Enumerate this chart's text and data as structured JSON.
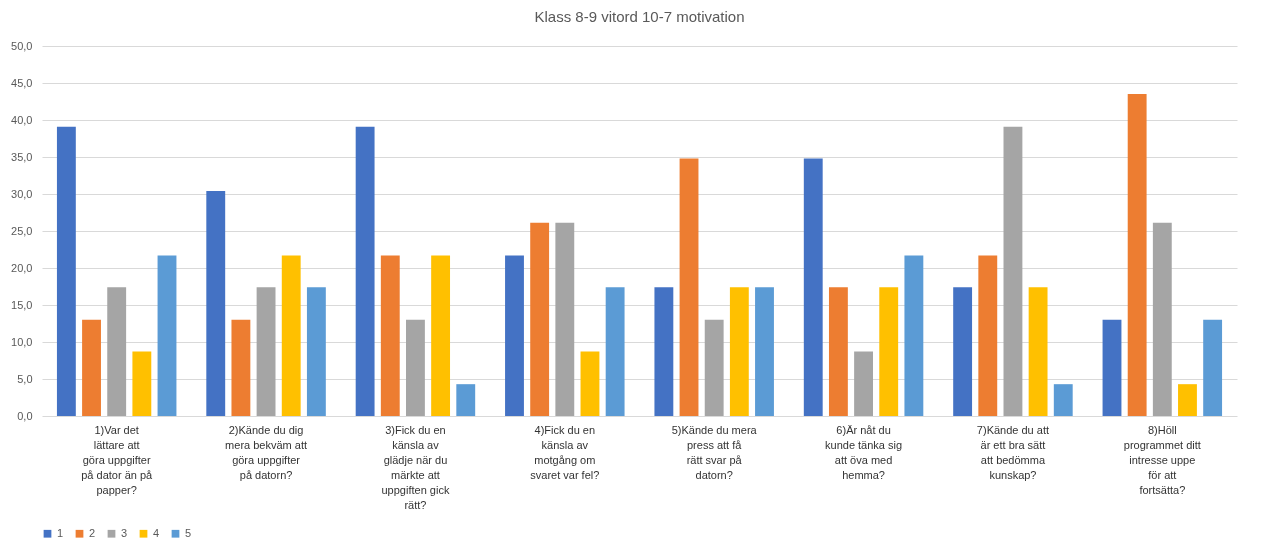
{
  "chart_data": {
    "type": "bar",
    "title": "Klass 8-9 vitord 10-7 motivation",
    "categories": [
      "1)Var det lättare att göra uppgifter på dator än på papper?",
      "2)Kände du dig mera bekväm att göra uppgifter på datorn?",
      "3)Fick du en känsla av glädje när du märkte att uppgiften gick rätt?",
      "4)Fick du en känsla av motgång om svaret var fel?",
      "5)Kände du mera press att få rätt svar på datorn?",
      "6)Är nåt du kunde tänka sig att öva med hemma?",
      "7)Kände du att är ett bra sätt att bedömma kunskap?",
      "8)Höll programmet ditt intresse uppe för att fortsätta?"
    ],
    "series": [
      {
        "name": "1",
        "color": "#4472c4",
        "values": [
          39.1,
          30.4,
          39.1,
          21.7,
          17.4,
          34.8,
          17.4,
          13.0
        ]
      },
      {
        "name": "2",
        "color": "#ed7d31",
        "values": [
          13.0,
          13.0,
          21.7,
          26.1,
          34.8,
          17.4,
          21.7,
          43.5
        ]
      },
      {
        "name": "3",
        "color": "#a5a5a5",
        "values": [
          17.4,
          17.4,
          13.0,
          26.1,
          13.0,
          8.7,
          39.1,
          26.1
        ]
      },
      {
        "name": "4",
        "color": "#ffc000",
        "values": [
          8.7,
          21.7,
          21.7,
          8.7,
          17.4,
          17.4,
          17.4,
          4.3
        ]
      },
      {
        "name": "5",
        "color": "#5b9bd5",
        "values": [
          21.7,
          17.4,
          4.3,
          17.4,
          17.4,
          21.7,
          4.3,
          13.0
        ]
      }
    ],
    "ylim": [
      0,
      50
    ],
    "yticks": [
      {
        "value": 0,
        "label": "0,0"
      },
      {
        "value": 5,
        "label": "5,0"
      },
      {
        "value": 10,
        "label": "10,0"
      },
      {
        "value": 15,
        "label": "15,0"
      },
      {
        "value": 20,
        "label": "20,0"
      },
      {
        "value": 25,
        "label": "25,0"
      },
      {
        "value": 30,
        "label": "30,0"
      },
      {
        "value": 35,
        "label": "35,0"
      },
      {
        "value": 40,
        "label": "40,0"
      },
      {
        "value": 45,
        "label": "45,0"
      },
      {
        "value": 50,
        "label": "50,0"
      }
    ],
    "grid": "y",
    "legend": "bottom"
  }
}
